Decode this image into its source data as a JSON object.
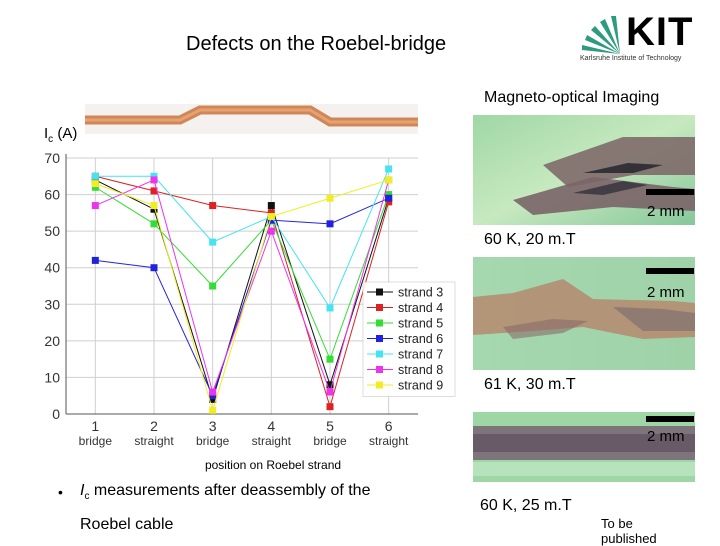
{
  "slide": {
    "title": "Defects on the Roebel-bridge",
    "logo_text": "KIT",
    "logo_subtitle": "Karlsruhe Institute of Technology",
    "mo_heading": "Magneto-optical Imaging",
    "scale_label": "2 mm",
    "conditions": [
      "60 K, 20 m.T",
      "61 K, 30 m.T",
      "60 K, 25 m.T"
    ],
    "bullet_symbol": "•",
    "bullet_line1_italic": "I",
    "bullet_line1_sub": "c",
    "bullet_line1_rest": " measurements after deassembly of the",
    "bullet_line2": "Roebel cable",
    "status_note": "To be published"
  },
  "chart_data": {
    "type": "line",
    "ylabel_main": "I",
    "ylabel_sub": "c",
    "ylabel_unit": " (A)",
    "xlabel": "position on Roebel strand",
    "ylim": [
      0,
      70
    ],
    "yticks": [
      0,
      10,
      20,
      30,
      40,
      50,
      60,
      70
    ],
    "x": [
      1,
      2,
      3,
      4,
      5,
      6
    ],
    "xtick_labels": [
      "1",
      "2",
      "3",
      "4",
      "5",
      "6"
    ],
    "xtick_sublabels": [
      "bridge",
      "straight",
      "bridge",
      "straight",
      "bridge",
      "straight"
    ],
    "grid": true,
    "legend_position": "lower-right",
    "series": [
      {
        "name": "strand 3",
        "color": "#111111",
        "values": [
          64,
          56,
          4,
          57,
          8,
          59
        ]
      },
      {
        "name": "strand 4",
        "color": "#dd2222",
        "values": [
          65,
          61,
          57,
          55,
          2,
          58
        ]
      },
      {
        "name": "strand 5",
        "color": "#33dd33",
        "values": [
          62,
          52,
          35,
          53,
          15,
          60
        ]
      },
      {
        "name": "strand 6",
        "color": "#2222dd",
        "values": [
          42,
          40,
          5,
          53,
          52,
          59
        ]
      },
      {
        "name": "strand 7",
        "color": "#44e4f0",
        "values": [
          65,
          65,
          47,
          54,
          29,
          67
        ]
      },
      {
        "name": "strand 8",
        "color": "#ee33ee",
        "values": [
          57,
          64,
          6,
          50,
          6,
          64
        ]
      },
      {
        "name": "strand 9",
        "color": "#f0ee22",
        "values": [
          63,
          57,
          1,
          54,
          59,
          64
        ]
      }
    ]
  }
}
